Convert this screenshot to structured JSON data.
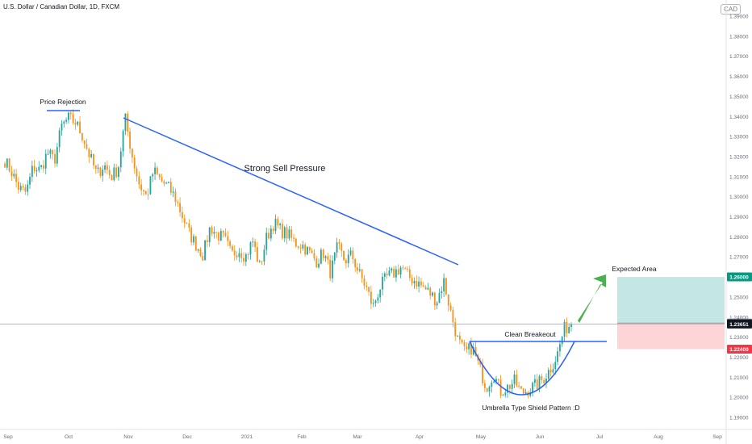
{
  "header": {
    "title": "U.S. Dollar / Canadian Dollar, 1D, FXCM",
    "currency_badge": "CAD"
  },
  "chart_data": {
    "type": "candlestick",
    "title": "U.S. Dollar / Canadian Dollar, 1D, FXCM",
    "y_axis": {
      "position": "right",
      "ylim": [
        1.187,
        1.394
      ],
      "ticks": [
        "1.39000",
        "1.38000",
        "1.37000",
        "1.36000",
        "1.35000",
        "1.34000",
        "1.33000",
        "1.32000",
        "1.31000",
        "1.30000",
        "1.29000",
        "1.28000",
        "1.27000",
        "1.26000",
        "1.25000",
        "1.24000",
        "1.23000",
        "1.22000",
        "1.21000",
        "1.20000",
        "1.19000"
      ],
      "tick_values": [
        1.39,
        1.38,
        1.37,
        1.36,
        1.35,
        1.34,
        1.33,
        1.32,
        1.31,
        1.3,
        1.29,
        1.28,
        1.27,
        1.26,
        1.25,
        1.24,
        1.23,
        1.22,
        1.21,
        1.2,
        1.19
      ]
    },
    "x_axis": {
      "ticks": [
        "Sep",
        "Oct",
        "Nov",
        "Dec",
        "2021",
        "Feb",
        "Mar",
        "Apr",
        "May",
        "Jun",
        "Jul",
        "Aug",
        "Sep"
      ]
    },
    "price_labels": [
      {
        "value": 1.26,
        "text": "1.26000",
        "color": "#089981"
      },
      {
        "value": 1.237,
        "text": "1.23700",
        "color": "#6a6d78"
      },
      {
        "value": 1.23651,
        "text": "1.23651",
        "color": "#131722"
      },
      {
        "value": 1.224,
        "text": "1.22400",
        "color": "#f23645"
      }
    ],
    "current_price": 1.23651,
    "price_path": [
      1.318,
      1.312,
      1.304,
      1.302,
      1.315,
      1.313,
      1.322,
      1.318,
      1.335,
      1.339,
      1.337,
      1.33,
      1.32,
      1.311,
      1.316,
      1.31,
      1.314,
      1.339,
      1.32,
      1.306,
      1.3,
      1.313,
      1.308,
      1.305,
      1.3,
      1.291,
      1.282,
      1.276,
      1.271,
      1.285,
      1.281,
      1.279,
      1.271,
      1.274,
      1.27,
      1.278,
      1.265,
      1.28,
      1.287,
      1.283,
      1.281,
      1.277,
      1.276,
      1.272,
      1.268,
      1.272,
      1.262,
      1.275,
      1.268,
      1.271,
      1.262,
      1.255,
      1.245,
      1.255,
      1.26,
      1.262,
      1.265,
      1.26,
      1.258,
      1.255,
      1.252,
      1.248,
      1.258,
      1.242,
      1.228,
      1.222,
      1.225,
      1.215,
      1.205,
      1.212,
      1.203,
      1.205,
      1.208,
      1.202,
      1.204,
      1.206,
      1.209,
      1.214,
      1.221,
      1.234,
      1.2365
    ],
    "annotations": [
      {
        "text": "Price Rejection"
      },
      {
        "text": "Strong Sell Pressure"
      },
      {
        "text": "Clean Breakeout"
      },
      {
        "text": "Expected Area"
      },
      {
        "text": "Umbrella Type Shield Pattern :D"
      }
    ],
    "position_tool": {
      "entry": 1.237,
      "target": 1.26,
      "stop": 1.224,
      "profit_color": "#b2dfdb",
      "loss_color": "#fccbcd"
    },
    "colors": {
      "up": "#26a69a",
      "down": "#f7931a",
      "trendline": "#2962ff",
      "arrow": "#4caf50"
    },
    "grid": false
  }
}
